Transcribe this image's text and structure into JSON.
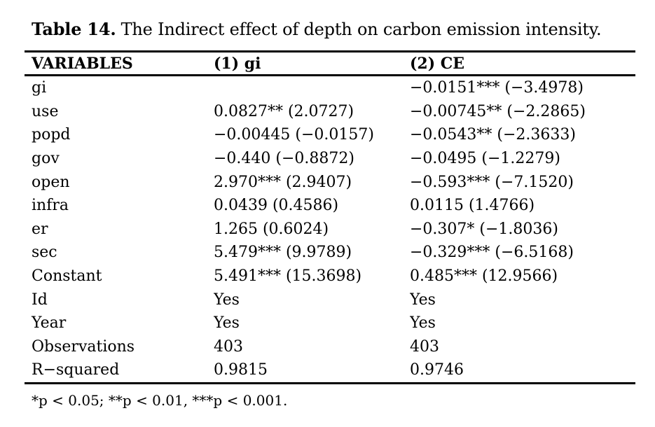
{
  "title": {
    "label": "Table 14.",
    "text": "The Indirect effect of depth on carbon emission intensity."
  },
  "table": {
    "columns": [
      "VARIABLES",
      "(1) gi",
      "(2) CE"
    ],
    "rows": [
      {
        "variable": "gi",
        "col1": "",
        "col2": "−0.0151*** (−3.4978)"
      },
      {
        "variable": "use",
        "col1": "0.0827** (2.0727)",
        "col2": "−0.00745** (−2.2865)"
      },
      {
        "variable": "popd",
        "col1": "−0.00445 (−0.0157)",
        "col2": "−0.0543** (−2.3633)"
      },
      {
        "variable": "gov",
        "col1": "−0.440 (−0.8872)",
        "col2": "−0.0495 (−1.2279)"
      },
      {
        "variable": "open",
        "col1": "2.970*** (2.9407)",
        "col2": "−0.593*** (−7.1520)"
      },
      {
        "variable": "infra",
        "col1": "0.0439 (0.4586)",
        "col2": "0.0115 (1.4766)"
      },
      {
        "variable": "er",
        "col1": "1.265 (0.6024)",
        "col2": "−0.307* (−1.8036)"
      },
      {
        "variable": "sec",
        "col1": "5.479*** (9.9789)",
        "col2": "−0.329*** (−6.5168)"
      },
      {
        "variable": "Constant",
        "col1": "5.491*** (15.3698)",
        "col2": "0.485*** (12.9566)"
      },
      {
        "variable": "Id",
        "col1": "Yes",
        "col2": "Yes"
      },
      {
        "variable": "Year",
        "col1": "Yes",
        "col2": "Yes"
      },
      {
        "variable": "Observations",
        "col1": "403",
        "col2": "403"
      },
      {
        "variable": "R−squared",
        "col1": "0.9815",
        "col2": "0.9746"
      }
    ]
  },
  "footnote": "*p < 0.05; **p < 0.01, ***p < 0.001.",
  "colors": {
    "text": "#000000",
    "rule": "#000000",
    "background": "#ffffff"
  }
}
